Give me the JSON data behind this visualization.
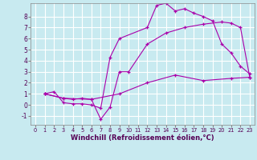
{
  "background_color": "#c8eaf0",
  "grid_color": "#ffffff",
  "line_color": "#aa00aa",
  "marker": "+",
  "xlabel": "Windchill (Refroidissement éolien,°C)",
  "xlabel_fontsize": 6.0,
  "ylabel_ticks": [
    -1,
    0,
    1,
    2,
    3,
    4,
    5,
    6,
    7,
    8
  ],
  "xlabel_ticks": [
    0,
    1,
    2,
    3,
    4,
    5,
    6,
    7,
    8,
    9,
    10,
    11,
    12,
    13,
    14,
    15,
    16,
    17,
    18,
    19,
    20,
    21,
    22,
    23
  ],
  "xlim": [
    -0.5,
    23.5
  ],
  "ylim": [
    -1.8,
    9.2
  ],
  "lines": [
    [
      [
        1,
        1
      ],
      [
        2,
        1.2
      ],
      [
        3,
        0.2
      ],
      [
        4,
        0.1
      ],
      [
        5,
        0.1
      ],
      [
        6,
        0.0
      ],
      [
        7,
        -0.3
      ],
      [
        8,
        4.3
      ],
      [
        9,
        6.0
      ],
      [
        12,
        7.0
      ],
      [
        13,
        9.0
      ],
      [
        14,
        9.2
      ],
      [
        15,
        8.5
      ],
      [
        16,
        8.7
      ],
      [
        17,
        8.3
      ],
      [
        18,
        8.0
      ],
      [
        19,
        7.6
      ],
      [
        20,
        5.5
      ],
      [
        21,
        4.7
      ],
      [
        22,
        3.5
      ],
      [
        23,
        2.8
      ]
    ],
    [
      [
        1,
        1.0
      ],
      [
        3,
        0.6
      ],
      [
        4,
        0.5
      ],
      [
        5,
        0.6
      ],
      [
        6,
        0.5
      ],
      [
        7,
        -1.3
      ],
      [
        8,
        -0.2
      ],
      [
        9,
        3.0
      ],
      [
        10,
        3.0
      ],
      [
        12,
        5.5
      ],
      [
        14,
        6.5
      ],
      [
        16,
        7.0
      ],
      [
        18,
        7.3
      ],
      [
        20,
        7.5
      ],
      [
        21,
        7.4
      ],
      [
        22,
        7.0
      ],
      [
        23,
        2.5
      ]
    ],
    [
      [
        1,
        1.0
      ],
      [
        3,
        0.6
      ],
      [
        6,
        0.5
      ],
      [
        9,
        1.0
      ],
      [
        12,
        2.0
      ],
      [
        15,
        2.7
      ],
      [
        18,
        2.2
      ],
      [
        21,
        2.4
      ],
      [
        23,
        2.5
      ]
    ]
  ]
}
